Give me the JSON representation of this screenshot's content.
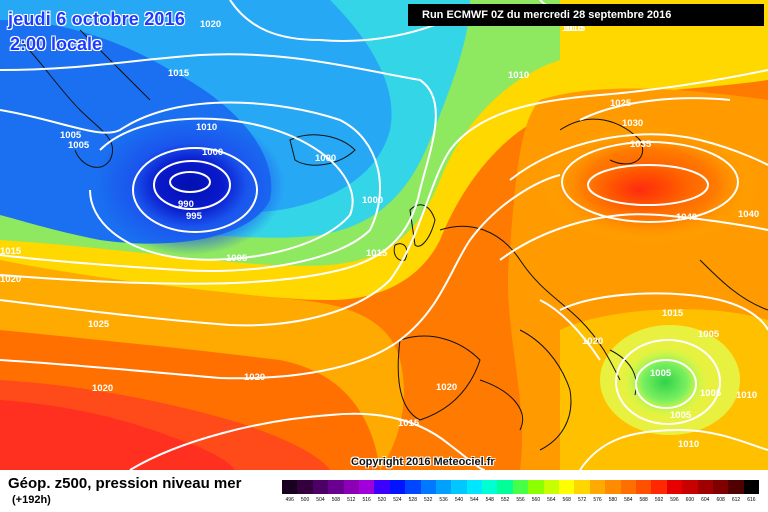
{
  "header": {
    "date": "jeudi 6 octobre 2016",
    "time": "2:00 locale",
    "run": "Run ECMWF 0Z du mercredi 28 septembre 2016"
  },
  "copyright": "Copyright 2016 Meteociel.fr",
  "legend": {
    "title": "Géop. z500, pression niveau mer",
    "subtitle": "(+192h)",
    "scale": [
      {
        "value": "496",
        "color": "#1a0020"
      },
      {
        "value": "500",
        "color": "#33003d"
      },
      {
        "value": "504",
        "color": "#4b0066"
      },
      {
        "value": "508",
        "color": "#6a008f"
      },
      {
        "value": "512",
        "color": "#8b00b5"
      },
      {
        "value": "516",
        "color": "#a000d9"
      },
      {
        "value": "520",
        "color": "#3c00ff"
      },
      {
        "value": "524",
        "color": "#0014ff"
      },
      {
        "value": "528",
        "color": "#0046ff"
      },
      {
        "value": "532",
        "color": "#0078ff"
      },
      {
        "value": "536",
        "color": "#00a0ff"
      },
      {
        "value": "540",
        "color": "#00c8ff"
      },
      {
        "value": "544",
        "color": "#00e6ff"
      },
      {
        "value": "548",
        "color": "#00ffd2"
      },
      {
        "value": "552",
        "color": "#00ff96"
      },
      {
        "value": "556",
        "color": "#46ff46"
      },
      {
        "value": "560",
        "color": "#8cff00"
      },
      {
        "value": "564",
        "color": "#c8ff00"
      },
      {
        "value": "568",
        "color": "#ffff00"
      },
      {
        "value": "572",
        "color": "#ffd700"
      },
      {
        "value": "576",
        "color": "#ffaa00"
      },
      {
        "value": "580",
        "color": "#ff8c00"
      },
      {
        "value": "584",
        "color": "#ff6e00"
      },
      {
        "value": "588",
        "color": "#ff5000"
      },
      {
        "value": "592",
        "color": "#ff2800"
      },
      {
        "value": "596",
        "color": "#e60000"
      },
      {
        "value": "600",
        "color": "#c80000"
      },
      {
        "value": "604",
        "color": "#a00000"
      },
      {
        "value": "608",
        "color": "#800000"
      },
      {
        "value": "612",
        "color": "#500000"
      },
      {
        "value": "616",
        "color": "#000000"
      }
    ]
  },
  "isobars": {
    "l1": "1020",
    "l2": "1015",
    "l3": "1010",
    "l4": "1005",
    "l5": "1005",
    "l6": "1010",
    "l7": "1000",
    "l8": "990",
    "l9": "995",
    "l10": "1000",
    "l11": "1000",
    "l12": "1005",
    "l13": "1015",
    "l14": "1015",
    "l15": "1020",
    "l16": "1025",
    "l17": "1020",
    "l18": "1020",
    "l19": "1020",
    "l20": "1015",
    "l21": "1010",
    "l22": "1005",
    "l23": "1025",
    "l24": "1030",
    "l25": "1035",
    "l26": "1040",
    "l27": "1040",
    "l28": "1015",
    "l29": "1005",
    "l30": "1020",
    "l31": "1005",
    "l32": "1005",
    "l33": "1005",
    "l34": "1010",
    "l35": "1010"
  },
  "colors": {
    "low_center": "#0a1acc",
    "high_center": "#ff4a00",
    "isobar": "#ffffff"
  }
}
